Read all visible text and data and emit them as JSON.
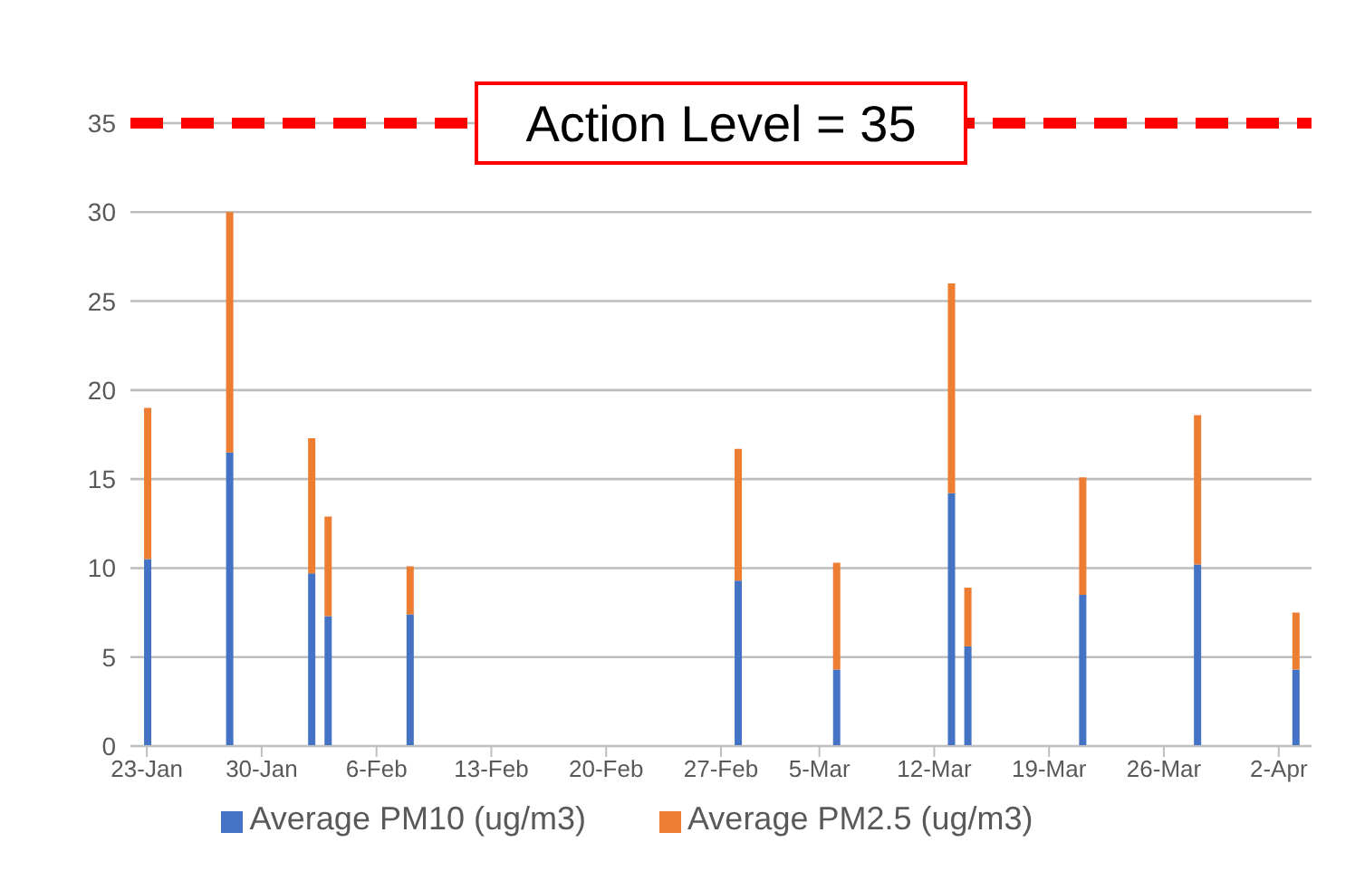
{
  "chart_data": {
    "type": "bar",
    "stacked": true,
    "x": [
      "--01-23",
      "--01-28",
      "--02-02",
      "--02-03",
      "--02-08",
      "--02-28",
      "--03-06",
      "--03-13",
      "--03-14",
      "--03-21",
      "--03-28",
      "--04-03"
    ],
    "series": [
      {
        "name": "Average PM10 (ug/m3)",
        "color": "#4472c4",
        "values": [
          10.5,
          16.5,
          9.7,
          7.3,
          7.4,
          9.3,
          4.3,
          14.2,
          5.6,
          8.5,
          10.2,
          4.3
        ]
      },
      {
        "name": "Average PM2.5 (ug/m3)",
        "color": "#ed7d31",
        "values": [
          8.5,
          13.5,
          7.6,
          5.6,
          2.7,
          7.4,
          6.0,
          11.8,
          3.3,
          6.6,
          8.4,
          3.2
        ]
      }
    ],
    "xlim": [
      "--01-22",
      "--04-04"
    ],
    "xticks": [
      {
        "value": "--01-23",
        "label": "23-Jan"
      },
      {
        "value": "--01-30",
        "label": "30-Jan"
      },
      {
        "value": "--02-06",
        "label": "6-Feb"
      },
      {
        "value": "--02-13",
        "label": "13-Feb"
      },
      {
        "value": "--02-20",
        "label": "20-Feb"
      },
      {
        "value": "--02-27",
        "label": "27-Feb"
      },
      {
        "value": "--03-05",
        "label": "5-Mar"
      },
      {
        "value": "--03-12",
        "label": "12-Mar"
      },
      {
        "value": "--03-19",
        "label": "19-Mar"
      },
      {
        "value": "--03-26",
        "label": "26-Mar"
      },
      {
        "value": "--04-02",
        "label": "2-Apr"
      }
    ],
    "ylim": [
      0,
      35
    ],
    "yticks": [
      0,
      5,
      10,
      15,
      20,
      25,
      30,
      35
    ],
    "ref_lines": [
      {
        "axis": "y",
        "value": 35,
        "label": "Action Level = 35",
        "color": "#ff0000",
        "line_style": "dashed"
      }
    ],
    "grid": "y",
    "legend": "bottom"
  }
}
